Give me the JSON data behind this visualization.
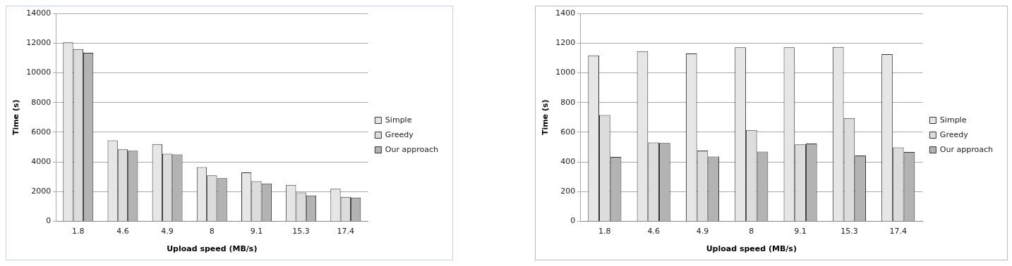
{
  "chart_data": [
    {
      "type": "bar",
      "xlabel": "Upload speed (MB/s)",
      "ylabel": "Time (s)",
      "categories": [
        "1.8",
        "4.6",
        "4.9",
        "8",
        "9.1",
        "15.3",
        "17.4"
      ],
      "series": [
        {
          "name": "Simple",
          "color": "#e6e6e6",
          "values": [
            12050,
            5450,
            5200,
            3650,
            3300,
            2450,
            2200
          ]
        },
        {
          "name": "Greedy",
          "color": "#dcdcdc",
          "values": [
            11600,
            4850,
            4550,
            3100,
            2700,
            1950,
            1650
          ]
        },
        {
          "name": "Our approach",
          "color": "#b3b3b3",
          "values": [
            11350,
            4750,
            4500,
            2900,
            2550,
            1750,
            1600
          ]
        }
      ],
      "ylim": [
        0,
        14000
      ],
      "yticks": [
        0,
        2000,
        4000,
        6000,
        8000,
        10000,
        12000,
        14000
      ],
      "grid": "y",
      "legend": "right"
    },
    {
      "type": "bar",
      "xlabel": "Upload speed (MB/s)",
      "ylabel": "Time (s)",
      "categories": [
        "1.8",
        "4.6",
        "4.9",
        "8",
        "9.1",
        "15.3",
        "17.4"
      ],
      "series": [
        {
          "name": "Simple",
          "color": "#e6e6e6",
          "values": [
            1117,
            1145,
            1130,
            1172,
            1172,
            1174,
            1125
          ]
        },
        {
          "name": "Greedy",
          "color": "#dcdcdc",
          "values": [
            716,
            531,
            476,
            615,
            518,
            696,
            498
          ]
        },
        {
          "name": "Our approach",
          "color": "#b3b3b3",
          "values": [
            434,
            527,
            436,
            469,
            524,
            443,
            467
          ]
        }
      ],
      "ylim": [
        0,
        1400
      ],
      "yticks": [
        0,
        200,
        400,
        600,
        800,
        1000,
        1200,
        1400
      ],
      "grid": "y",
      "legend": "right"
    }
  ]
}
